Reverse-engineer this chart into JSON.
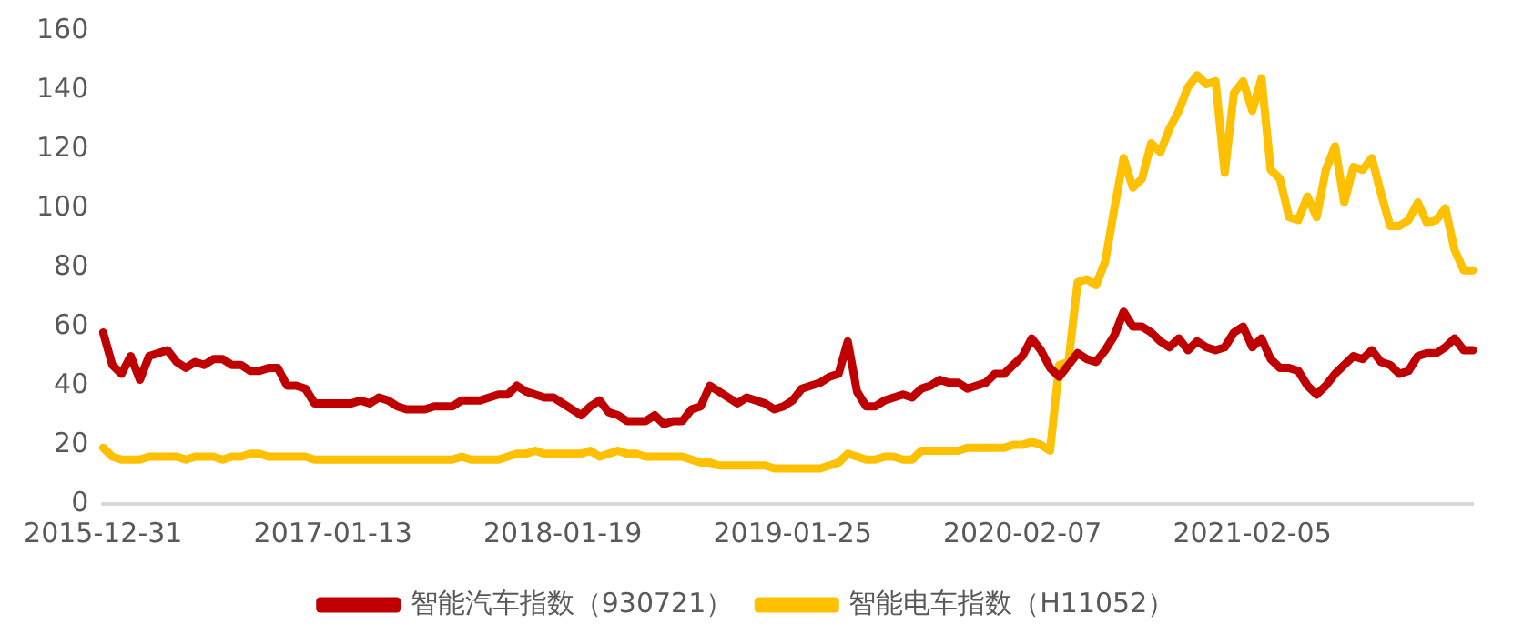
{
  "chart_data": {
    "type": "line",
    "categories": [
      "2015-12-31",
      null,
      null,
      null,
      null,
      null,
      null,
      null,
      null,
      null,
      null,
      null,
      null,
      null,
      null,
      null,
      null,
      null,
      null,
      null,
      null,
      null,
      null,
      null,
      null,
      "2017-01-13",
      null,
      null,
      null,
      null,
      null,
      null,
      null,
      null,
      null,
      null,
      null,
      null,
      null,
      null,
      null,
      null,
      null,
      null,
      null,
      null,
      null,
      null,
      null,
      null,
      "2018-01-19",
      null,
      null,
      null,
      null,
      null,
      null,
      null,
      null,
      null,
      null,
      null,
      null,
      null,
      null,
      null,
      null,
      null,
      null,
      null,
      null,
      null,
      null,
      null,
      null,
      "2019-01-25",
      null,
      null,
      null,
      null,
      null,
      null,
      null,
      null,
      null,
      null,
      null,
      null,
      null,
      null,
      null,
      null,
      null,
      null,
      null,
      null,
      null,
      null,
      null,
      null,
      "2020-02-07",
      null,
      null,
      null,
      null,
      null,
      null,
      null,
      null,
      null,
      null,
      null,
      null,
      null,
      null,
      null,
      null,
      null,
      null,
      null,
      null,
      null,
      null,
      null,
      null,
      "2021-02-05",
      null,
      null,
      null,
      null,
      null,
      null,
      null,
      null,
      null,
      null,
      null,
      null,
      null,
      null,
      null,
      null,
      null,
      null,
      null,
      null,
      null,
      null,
      null,
      null
    ],
    "series": [
      {
        "name": "智能汽车指数（930721）",
        "color": "#c00000",
        "values": [
          58,
          47,
          44,
          50,
          42,
          50,
          51,
          52,
          48,
          46,
          48,
          47,
          49,
          49,
          47,
          47,
          45,
          45,
          46,
          46,
          40,
          40,
          39,
          34,
          34,
          34,
          34,
          34,
          35,
          34,
          36,
          35,
          33,
          32,
          32,
          32,
          33,
          33,
          33,
          35,
          35,
          35,
          36,
          37,
          37,
          40,
          38,
          37,
          36,
          36,
          34,
          32,
          30,
          33,
          35,
          31,
          30,
          28,
          28,
          28,
          30,
          27,
          28,
          28,
          32,
          33,
          40,
          38,
          36,
          34,
          36,
          35,
          34,
          32,
          33,
          35,
          39,
          40,
          41,
          43,
          44,
          55,
          38,
          33,
          33,
          35,
          36,
          37,
          36,
          39,
          40,
          42,
          41,
          41,
          39,
          40,
          41,
          44,
          44,
          47,
          50,
          56,
          52,
          46,
          43,
          47,
          51,
          49,
          48,
          52,
          57,
          65,
          60,
          60,
          58,
          55,
          53,
          56,
          52,
          55,
          53,
          52,
          53,
          58,
          60,
          53,
          56,
          49,
          46,
          46,
          45,
          40,
          37,
          40,
          44,
          47,
          50,
          49,
          52,
          48,
          47,
          44,
          45,
          50,
          51,
          51,
          53,
          56,
          52,
          52
        ]
      },
      {
        "name": "智能电车指数（H11052）",
        "color": "#ffc000",
        "values": [
          19,
          16,
          15,
          15,
          15,
          16,
          16,
          16,
          16,
          15,
          16,
          16,
          16,
          15,
          16,
          16,
          17,
          17,
          16,
          16,
          16,
          16,
          16,
          15,
          15,
          15,
          15,
          15,
          15,
          15,
          15,
          15,
          15,
          15,
          15,
          15,
          15,
          15,
          15,
          16,
          15,
          15,
          15,
          15,
          16,
          17,
          17,
          18,
          17,
          17,
          17,
          17,
          17,
          18,
          16,
          17,
          18,
          17,
          17,
          16,
          16,
          16,
          16,
          16,
          15,
          14,
          14,
          13,
          13,
          13,
          13,
          13,
          13,
          12,
          12,
          12,
          12,
          12,
          12,
          13,
          14,
          17,
          16,
          15,
          15,
          16,
          16,
          15,
          15,
          18,
          18,
          18,
          18,
          18,
          19,
          19,
          19,
          19,
          19,
          20,
          20,
          21,
          20,
          18,
          47,
          48,
          75,
          76,
          74,
          82,
          100,
          117,
          107,
          110,
          122,
          119,
          127,
          133,
          141,
          145,
          142,
          143,
          112,
          139,
          143,
          133,
          144,
          113,
          110,
          97,
          96,
          104,
          97,
          113,
          121,
          102,
          114,
          113,
          117,
          105,
          94,
          94,
          96,
          102,
          95,
          96,
          100,
          86,
          79,
          79
        ]
      }
    ],
    "ylim": [
      0,
      160
    ],
    "yticks": [
      0,
      20,
      40,
      60,
      80,
      100,
      120,
      140,
      160
    ],
    "grid": false,
    "legend": "bottom",
    "marker": "none",
    "line_style": "solid"
  }
}
